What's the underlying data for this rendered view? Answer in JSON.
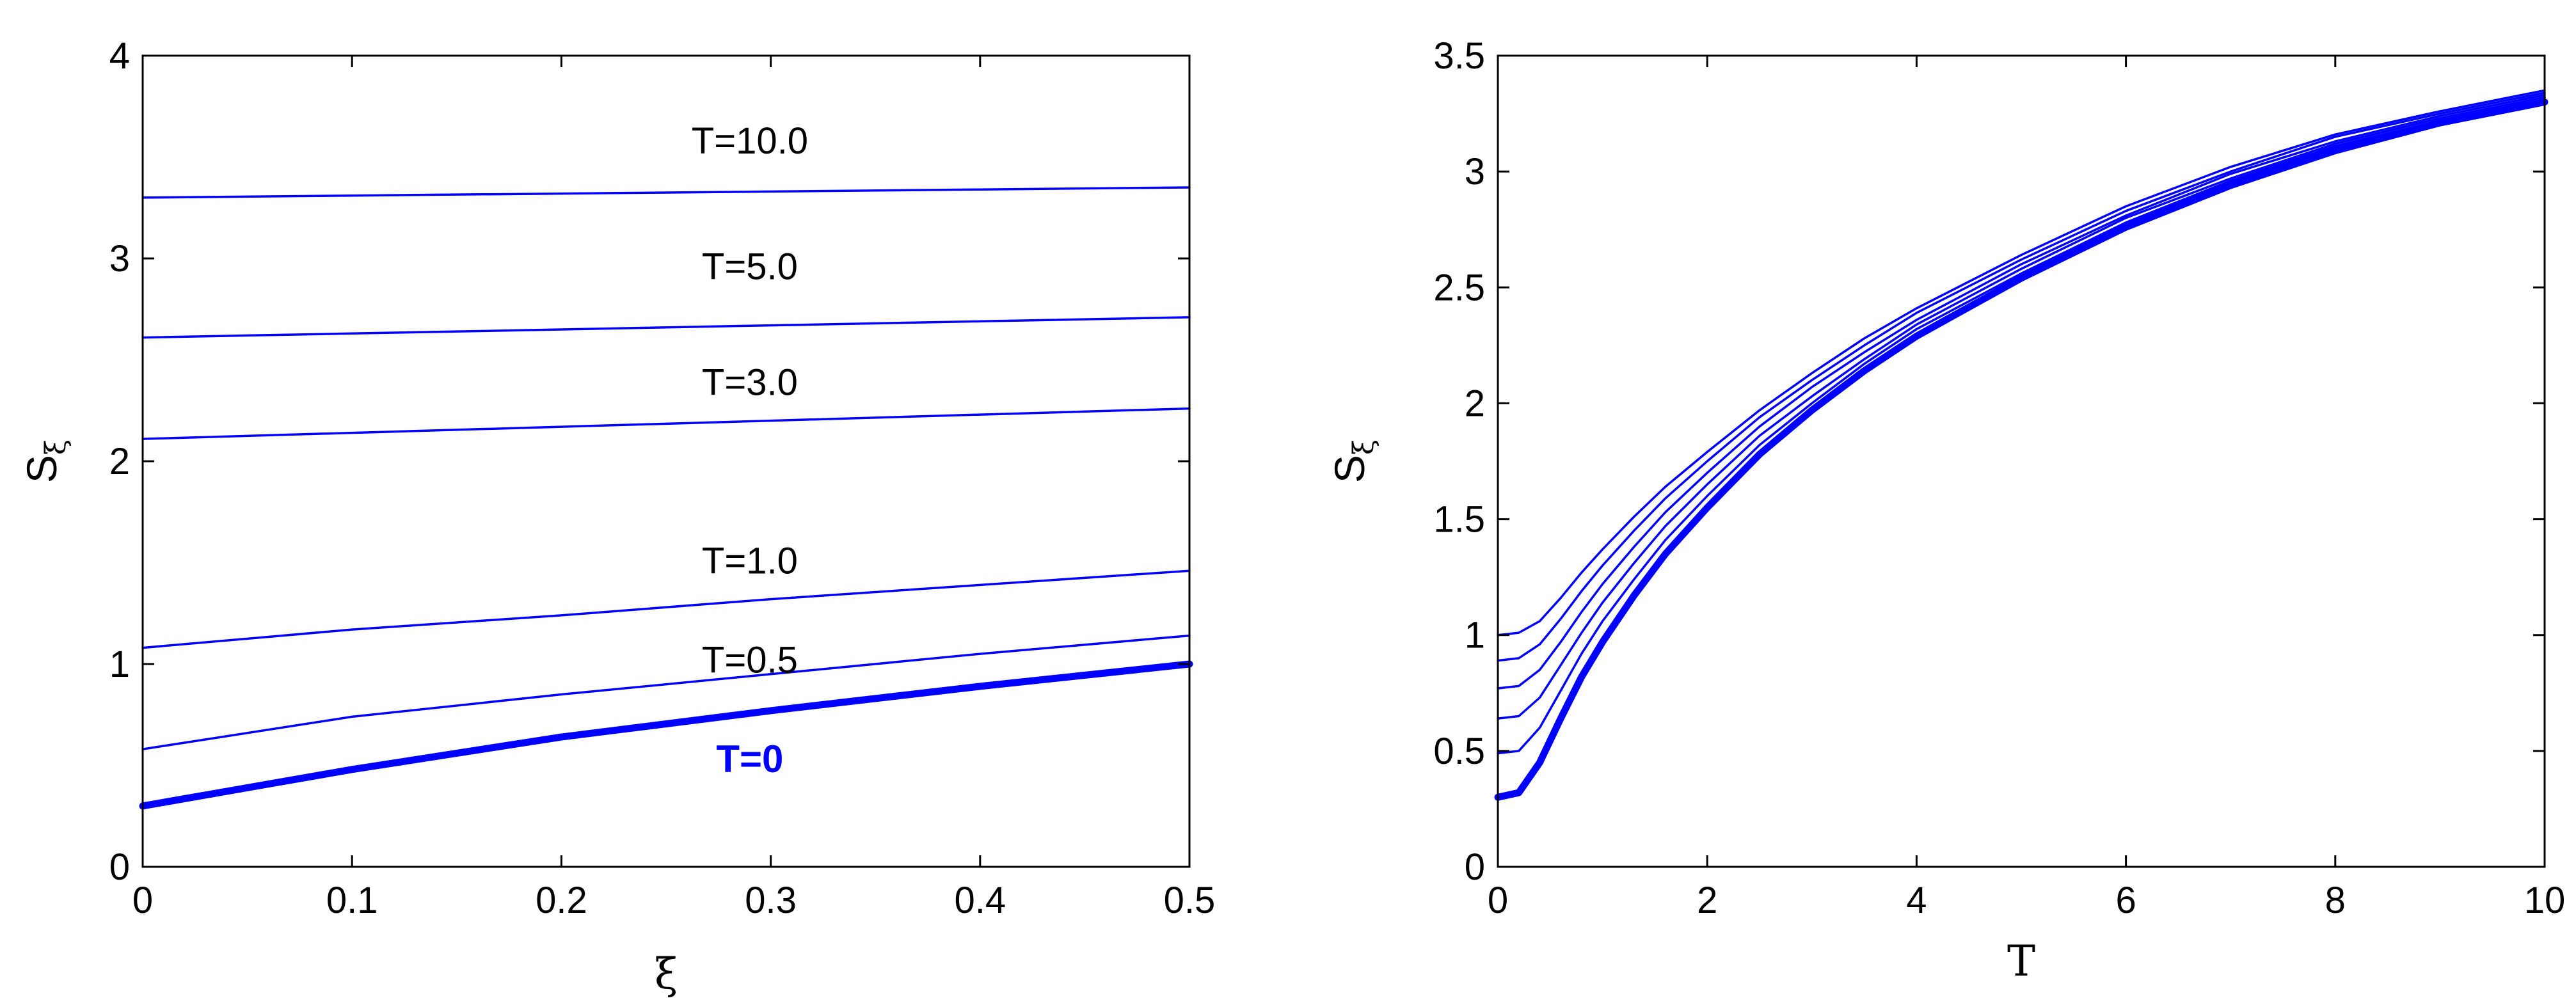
{
  "colors": {
    "series": "#0000ff",
    "axes": "#000000",
    "background": "#ffffff"
  },
  "chart_data": [
    {
      "type": "line",
      "title": "",
      "xlabel": "ξ",
      "ylabel": "S",
      "ylabel_subscript": "ξ",
      "xlim": [
        0,
        0.5
      ],
      "ylim": [
        0,
        4
      ],
      "xticks": [
        "0",
        "0.1",
        "0.2",
        "0.3",
        "0.4",
        "0.5"
      ],
      "yticks": [
        "0",
        "1",
        "2",
        "3",
        "4"
      ],
      "grid": false,
      "series": [
        {
          "name": "T=10.0",
          "x": [
            0,
            0.1,
            0.2,
            0.3,
            0.4,
            0.5
          ],
          "y": [
            3.3,
            3.31,
            3.32,
            3.33,
            3.34,
            3.35
          ]
        },
        {
          "name": "T=5.0",
          "x": [
            0,
            0.1,
            0.2,
            0.3,
            0.4,
            0.5
          ],
          "y": [
            2.61,
            2.63,
            2.65,
            2.67,
            2.69,
            2.71
          ]
        },
        {
          "name": "T=3.0",
          "x": [
            0,
            0.1,
            0.2,
            0.3,
            0.4,
            0.5
          ],
          "y": [
            2.11,
            2.14,
            2.17,
            2.2,
            2.23,
            2.26
          ]
        },
        {
          "name": "T=1.0",
          "x": [
            0,
            0.1,
            0.2,
            0.3,
            0.4,
            0.5
          ],
          "y": [
            1.08,
            1.17,
            1.24,
            1.32,
            1.39,
            1.46
          ]
        },
        {
          "name": "T=0.5",
          "x": [
            0,
            0.1,
            0.2,
            0.3,
            0.4,
            0.5
          ],
          "y": [
            0.58,
            0.74,
            0.85,
            0.95,
            1.05,
            1.14
          ]
        },
        {
          "name": "T=0",
          "x": [
            0,
            0.1,
            0.2,
            0.3,
            0.4,
            0.5
          ],
          "y": [
            0.3,
            0.48,
            0.64,
            0.77,
            0.89,
            1.0
          ]
        }
      ],
      "annotations": [
        {
          "text": "T=10.0",
          "x": 0.29,
          "y": 3.58,
          "bold": false
        },
        {
          "text": "T=5.0",
          "x": 0.29,
          "y": 2.96,
          "bold": false
        },
        {
          "text": "T=3.0",
          "x": 0.29,
          "y": 2.39,
          "bold": false
        },
        {
          "text": "T=1.0",
          "x": 0.29,
          "y": 1.51,
          "bold": false
        },
        {
          "text": "T=0.5",
          "x": 0.29,
          "y": 1.02,
          "bold": false
        },
        {
          "text": "T=0",
          "x": 0.29,
          "y": 0.53,
          "bold": true
        }
      ]
    },
    {
      "type": "line",
      "title": "",
      "xlabel": "T",
      "ylabel": "S",
      "ylabel_subscript": "ξ",
      "xlim": [
        0,
        10
      ],
      "ylim": [
        0,
        3.5
      ],
      "xticks": [
        "0",
        "2",
        "4",
        "6",
        "8",
        "10"
      ],
      "yticks": [
        "0",
        "0.5",
        "1",
        "1.5",
        "2",
        "2.5",
        "3",
        "3.5"
      ],
      "grid": false,
      "series": [
        {
          "x": [
            0,
            0.2,
            0.4,
            0.6,
            0.8,
            1.0,
            1.3,
            1.6,
            2.0,
            2.5,
            3.0,
            3.5,
            4.0,
            5.0,
            6.0,
            7.0,
            8.0,
            9.0,
            10.0
          ],
          "y": [
            1.0,
            1.01,
            1.06,
            1.16,
            1.27,
            1.37,
            1.51,
            1.64,
            1.79,
            1.97,
            2.13,
            2.28,
            2.41,
            2.64,
            2.85,
            3.02,
            3.16,
            3.26,
            3.35
          ]
        },
        {
          "x": [
            0,
            0.2,
            0.4,
            0.6,
            0.8,
            1.0,
            1.3,
            1.6,
            2.0,
            2.5,
            3.0,
            3.5,
            4.0,
            5.0,
            6.0,
            7.0,
            8.0,
            9.0,
            10.0
          ],
          "y": [
            0.89,
            0.9,
            0.96,
            1.07,
            1.19,
            1.3,
            1.45,
            1.59,
            1.75,
            1.94,
            2.1,
            2.25,
            2.39,
            2.62,
            2.83,
            3.0,
            3.15,
            3.25,
            3.34
          ]
        },
        {
          "x": [
            0,
            0.2,
            0.4,
            0.6,
            0.8,
            1.0,
            1.3,
            1.6,
            2.0,
            2.5,
            3.0,
            3.5,
            4.0,
            5.0,
            6.0,
            7.0,
            8.0,
            9.0,
            10.0
          ],
          "y": [
            0.77,
            0.78,
            0.85,
            0.97,
            1.1,
            1.22,
            1.38,
            1.53,
            1.7,
            1.9,
            2.07,
            2.22,
            2.36,
            2.6,
            2.81,
            2.99,
            3.13,
            3.24,
            3.33
          ]
        },
        {
          "x": [
            0,
            0.2,
            0.4,
            0.6,
            0.8,
            1.0,
            1.3,
            1.6,
            2.0,
            2.5,
            3.0,
            3.5,
            4.0,
            5.0,
            6.0,
            7.0,
            8.0,
            9.0,
            10.0
          ],
          "y": [
            0.64,
            0.65,
            0.73,
            0.87,
            1.01,
            1.14,
            1.31,
            1.47,
            1.65,
            1.86,
            2.03,
            2.19,
            2.34,
            2.58,
            2.8,
            2.97,
            3.12,
            3.23,
            3.32
          ]
        },
        {
          "x": [
            0,
            0.2,
            0.4,
            0.6,
            0.8,
            1.0,
            1.3,
            1.6,
            2.0,
            2.5,
            3.0,
            3.5,
            4.0,
            5.0,
            6.0,
            7.0,
            8.0,
            9.0,
            10.0
          ],
          "y": [
            0.49,
            0.5,
            0.6,
            0.76,
            0.92,
            1.06,
            1.24,
            1.41,
            1.6,
            1.82,
            2.0,
            2.17,
            2.32,
            2.56,
            2.78,
            2.96,
            3.11,
            3.22,
            3.31
          ]
        },
        {
          "x": [
            0,
            0.2,
            0.4,
            0.6,
            0.8,
            1.0,
            1.3,
            1.6,
            2.0,
            2.5,
            3.0,
            3.5,
            4.0,
            5.0,
            6.0,
            7.0,
            8.0,
            9.0,
            10.0
          ],
          "y": [
            0.3,
            0.32,
            0.45,
            0.64,
            0.82,
            0.97,
            1.17,
            1.35,
            1.55,
            1.78,
            1.97,
            2.14,
            2.29,
            2.54,
            2.76,
            2.94,
            3.09,
            3.21,
            3.3
          ]
        }
      ],
      "annotations": []
    }
  ]
}
